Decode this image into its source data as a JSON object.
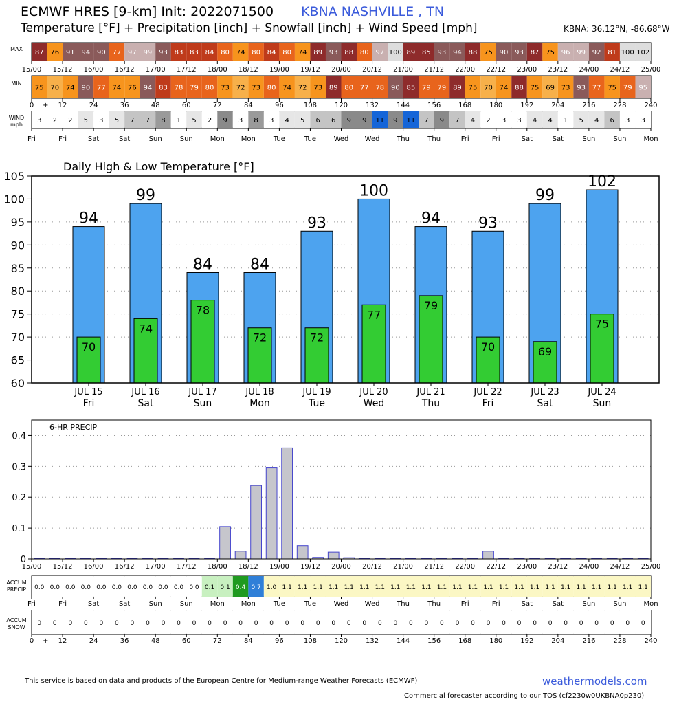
{
  "header": {
    "model_init": "ECMWF HRES [9-km] Init: 2022071500",
    "location": "KBNA NASHVILLE      , TN",
    "subtitle": "Temperature [°F] + Precipitation [inch] + Snowfall [inch] + Wind Speed [mph]",
    "coords": "KBNA: 36.12°N, -86.68°W"
  },
  "strip_labels": {
    "max": "MAX",
    "min": "MIN",
    "wind_1": "WIND",
    "wind_2": "mph",
    "accum_precip_1": "ACCUM",
    "accum_precip_2": "PRECIP",
    "accum_snow_1": "ACCUM",
    "accum_snow_2": "SNOW"
  },
  "time_axis_labels": [
    "15/00",
    "15/12",
    "16/00",
    "16/12",
    "17/00",
    "17/12",
    "18/00",
    "18/12",
    "19/00",
    "19/12",
    "20/00",
    "20/12",
    "21/00",
    "21/12",
    "22/00",
    "22/12",
    "23/00",
    "23/12",
    "24/00",
    "24/12",
    "25/00"
  ],
  "hour_axis_labels": [
    "0",
    "+",
    "12",
    "24",
    "36",
    "48",
    "60",
    "72",
    "84",
    "96",
    "108",
    "120",
    "132",
    "144",
    "156",
    "168",
    "180",
    "192",
    "204",
    "216",
    "228",
    "240"
  ],
  "day_axis_labels": [
    "Fri",
    "Fri",
    "Sat",
    "Sat",
    "Sun",
    "Sun",
    "Mon",
    "Mon",
    "Tue",
    "Tue",
    "Wed",
    "Wed",
    "Thu",
    "Thu",
    "Fri",
    "Fri",
    "Sat",
    "Sat",
    "Sun",
    "Sun",
    "Mon"
  ],
  "max_temps": [
    87,
    76,
    91,
    94,
    90,
    77,
    97,
    99,
    93,
    83,
    83,
    84,
    80,
    74,
    80,
    84,
    80,
    74,
    89,
    93,
    88,
    80,
    97,
    100,
    89,
    85,
    93,
    94,
    88,
    75,
    90,
    93,
    87,
    75,
    96,
    99,
    92,
    81,
    100,
    102
  ],
  "min_temps": [
    75,
    70,
    74,
    90,
    77,
    74,
    76,
    94,
    83,
    78,
    79,
    80,
    73,
    72,
    73,
    80,
    74,
    72,
    73,
    89,
    80,
    77,
    78,
    90,
    85,
    79,
    79,
    89,
    75,
    70,
    74,
    88,
    75,
    69,
    73,
    93,
    77,
    75,
    79,
    95
  ],
  "wind_mph": [
    3,
    2,
    2,
    5,
    3,
    5,
    7,
    7,
    8,
    1,
    5,
    2,
    9,
    3,
    8,
    3,
    4,
    5,
    6,
    6,
    9,
    9,
    11,
    9,
    11,
    7,
    9,
    7,
    4,
    2,
    3,
    3,
    4,
    4,
    1,
    5,
    4,
    6,
    3,
    3
  ],
  "accum_precip": [
    "0.0",
    "0.0",
    "0.0",
    "0.0",
    "0.0",
    "0.0",
    "0.0",
    "0.0",
    "0.0",
    "0.0",
    "0.0",
    "0.1",
    "0.1",
    "0.4",
    "0.7",
    "1.0",
    "1.1",
    "1.1",
    "1.1",
    "1.1",
    "1.1",
    "1.1",
    "1.1",
    "1.1",
    "1.1",
    "1.1",
    "1.1",
    "1.1",
    "1.1",
    "1.1",
    "1.1",
    "1.1",
    "1.1",
    "1.1",
    "1.1",
    "1.1",
    "1.1",
    "1.1",
    "1.1",
    "1.1"
  ],
  "accum_snow": [
    "0",
    "0",
    "0",
    "0",
    "0",
    "0",
    "0",
    "0",
    "0",
    "0",
    "0",
    "0",
    "0",
    "0",
    "0",
    "0",
    "0",
    "0",
    "0",
    "0",
    "0",
    "0",
    "0",
    "0",
    "0",
    "0",
    "0",
    "0",
    "0",
    "0",
    "0",
    "0",
    "0",
    "0",
    "0",
    "0",
    "0",
    "0",
    "0",
    "0"
  ],
  "colors": {
    "high_bar": "#4da3ef",
    "low_bar": "#33cc33",
    "precip_bar": "#c6c6cc",
    "precip_edge": "#4444cc",
    "link": "#3b5bdb"
  },
  "chart_data": [
    {
      "type": "bar",
      "title": "Daily High & Low Temperature [°F]",
      "categories": [
        "JUL 15",
        "JUL 16",
        "JUL 17",
        "JUL 18",
        "JUL 19",
        "JUL 20",
        "JUL 21",
        "JUL 22",
        "JUL 23",
        "JUL 24"
      ],
      "day_names": [
        "Fri",
        "Sat",
        "Sun",
        "Mon",
        "Tue",
        "Wed",
        "Thu",
        "Fri",
        "Sat",
        "Sun"
      ],
      "series": [
        {
          "name": "High",
          "values": [
            94,
            99,
            84,
            84,
            93,
            100,
            94,
            93,
            99,
            102
          ]
        },
        {
          "name": "Low",
          "values": [
            70,
            74,
            78,
            72,
            72,
            77,
            79,
            70,
            69,
            75
          ]
        }
      ],
      "ylim": [
        60,
        105
      ],
      "yticks": [
        60,
        65,
        70,
        75,
        80,
        85,
        90,
        95,
        100,
        105
      ],
      "grid": true
    },
    {
      "type": "bar",
      "title": "6-HR PRECIP",
      "x_labels": [
        "15/00",
        "15/12",
        "16/00",
        "16/12",
        "17/00",
        "17/12",
        "18/00",
        "18/12",
        "19/00",
        "19/12",
        "20/00",
        "20/12",
        "21/00",
        "21/12",
        "22/00",
        "22/12",
        "23/00",
        "23/12",
        "24/00",
        "24/12",
        "25/00"
      ],
      "values": [
        0,
        0,
        0,
        0,
        0,
        0,
        0,
        0,
        0,
        0,
        0,
        0,
        0.105,
        0.025,
        0.238,
        0.295,
        0.36,
        0.043,
        0.005,
        0.022,
        0.004,
        0.002,
        0,
        0,
        0,
        0,
        0,
        0,
        0,
        0.025,
        0,
        0,
        0,
        0,
        0,
        0,
        0,
        0,
        0,
        0
      ],
      "ylim": [
        0,
        0.45
      ],
      "yticks": [
        "0",
        "0.1",
        "0.2",
        "0.3",
        "0.4"
      ],
      "grid": true
    }
  ],
  "footer": {
    "disclaimer": "This service is based on data and products of the European Centre for Medium-range Weather Forecasts (ECMWF)",
    "site": "weathermodels.com",
    "license": "Commercial forecaster according to our TOS (cf2230w0UKBNA0p230)"
  }
}
